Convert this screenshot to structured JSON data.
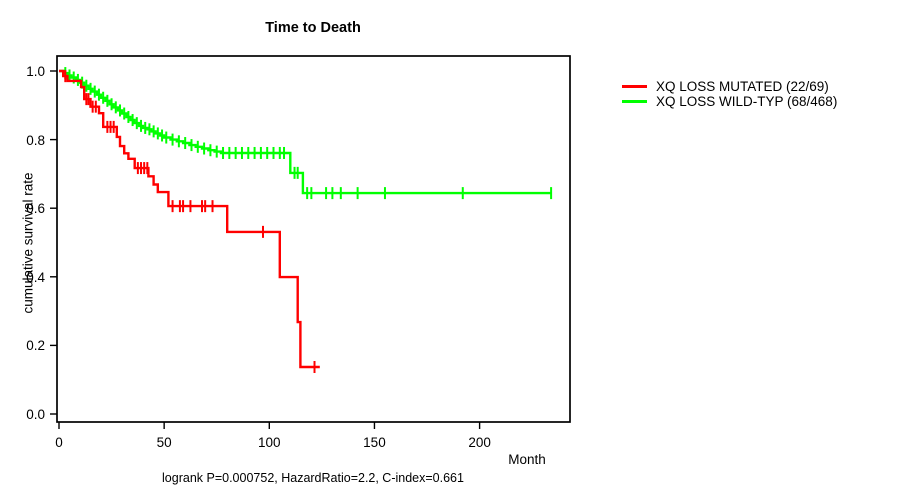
{
  "chart_data": {
    "type": "line",
    "subtype": "kaplan-meier-step",
    "title": "Time to Death",
    "xlabel": "Month",
    "ylabel": "cumulative survival rate",
    "footer": "logrank P=0.000752, HazardRatio=2.2, C-index=0.661",
    "grid": false,
    "legend_position": "right-outside",
    "xlim": [
      0,
      243
    ],
    "ylim": [
      0.0,
      1.04
    ],
    "x_ticks": [
      {
        "v": 0,
        "label": "0"
      },
      {
        "v": 50,
        "label": "50"
      },
      {
        "v": 100,
        "label": "100"
      },
      {
        "v": 150,
        "label": "150"
      },
      {
        "v": 200,
        "label": "200"
      }
    ],
    "y_ticks": [
      {
        "v": 0.0,
        "label": "0.0"
      },
      {
        "v": 0.2,
        "label": "0.2"
      },
      {
        "v": 0.4,
        "label": "0.4"
      },
      {
        "v": 0.6,
        "label": "0.6"
      },
      {
        "v": 0.8,
        "label": "0.8"
      },
      {
        "v": 1.0,
        "label": "1.0"
      }
    ],
    "colors": {
      "axis": "#000000",
      "text": "#000000",
      "background": "#ffffff"
    },
    "series": [
      {
        "name": "XQ LOSS MUTATED (22/69)",
        "color": "#ff0000",
        "end_time": 124,
        "steps": [
          [
            0,
            1.0
          ],
          [
            2,
            0.985
          ],
          [
            4,
            0.971
          ],
          [
            10.5,
            0.953
          ],
          [
            12,
            0.918
          ],
          [
            15,
            0.896
          ],
          [
            19,
            0.877
          ],
          [
            21,
            0.837
          ],
          [
            27.5,
            0.808
          ],
          [
            29,
            0.781
          ],
          [
            31,
            0.76
          ],
          [
            33,
            0.744
          ],
          [
            36,
            0.717
          ],
          [
            42.5,
            0.693
          ],
          [
            45,
            0.669
          ],
          [
            47,
            0.647
          ],
          [
            52,
            0.606
          ],
          [
            80,
            0.531
          ],
          [
            105,
            0.399
          ],
          [
            113.5,
            0.268
          ],
          [
            114.8,
            0.137
          ]
        ],
        "censors": [
          3,
          13,
          14,
          16,
          17.5,
          23,
          24.5,
          26,
          37.5,
          39,
          40.5,
          42,
          54,
          57.5,
          59,
          62.5,
          68,
          69.5,
          73,
          97,
          121.5
        ]
      },
      {
        "name": "XQ LOSS WILD-TYP (68/468)",
        "color": "#00ff00",
        "end_time": 234,
        "steps": [
          [
            0,
            1.0
          ],
          [
            2,
            0.994
          ],
          [
            4,
            0.987
          ],
          [
            6,
            0.981
          ],
          [
            8,
            0.974
          ],
          [
            10,
            0.966
          ],
          [
            12,
            0.957
          ],
          [
            14,
            0.948
          ],
          [
            16,
            0.94
          ],
          [
            18,
            0.931
          ],
          [
            20,
            0.922
          ],
          [
            22,
            0.913
          ],
          [
            24,
            0.903
          ],
          [
            26,
            0.894
          ],
          [
            28,
            0.885
          ],
          [
            30,
            0.876
          ],
          [
            32,
            0.866
          ],
          [
            34,
            0.857
          ],
          [
            36,
            0.848
          ],
          [
            38,
            0.84
          ],
          [
            40,
            0.834
          ],
          [
            42,
            0.83
          ],
          [
            44,
            0.824
          ],
          [
            46,
            0.818
          ],
          [
            48,
            0.812
          ],
          [
            50,
            0.806
          ],
          [
            53,
            0.8
          ],
          [
            56,
            0.795
          ],
          [
            59,
            0.79
          ],
          [
            62,
            0.784
          ],
          [
            65,
            0.779
          ],
          [
            68,
            0.774
          ],
          [
            71,
            0.769
          ],
          [
            74,
            0.765
          ],
          [
            77,
            0.761
          ],
          [
            110,
            0.703
          ],
          [
            116,
            0.644
          ]
        ],
        "censors": [
          3,
          5,
          7,
          9,
          11,
          13,
          15,
          17,
          19,
          21,
          23,
          25,
          27,
          29,
          31,
          33,
          35,
          37,
          39,
          41,
          43,
          45,
          47,
          49,
          51,
          54,
          57,
          60,
          63,
          66,
          69,
          72,
          75,
          78,
          81,
          84,
          87,
          90,
          93,
          96,
          99,
          102,
          105,
          107,
          112,
          113.5,
          118,
          120,
          127,
          130,
          134,
          142,
          155,
          192,
          234
        ]
      }
    ]
  }
}
